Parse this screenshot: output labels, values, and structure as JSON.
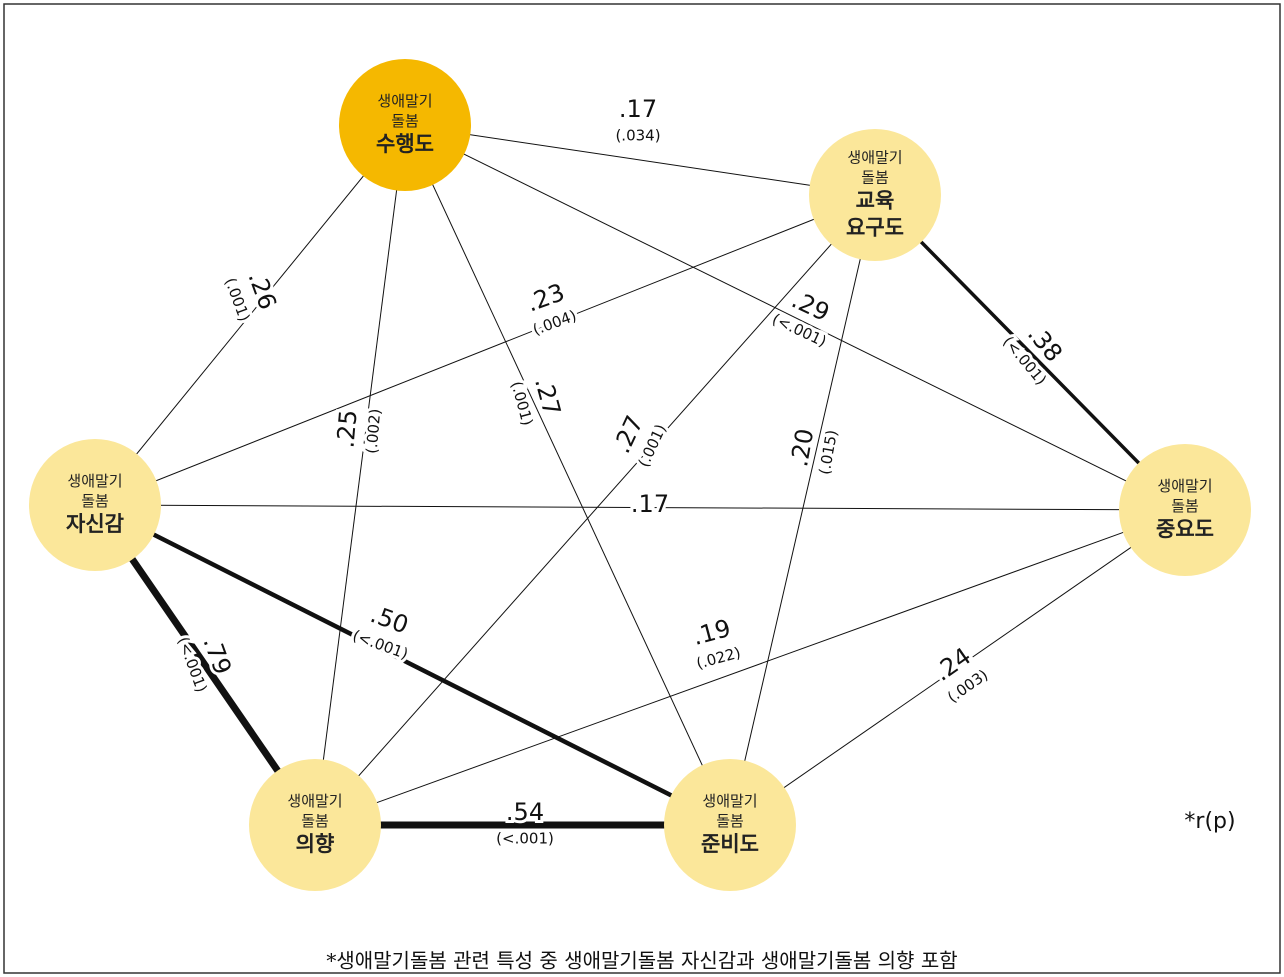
{
  "nodes": [
    {
      "small": [
        "생애말기",
        "돌봄"
      ],
      "name": [
        "수행도"
      ]
    },
    {
      "small": [
        "생애말기",
        "돌봄"
      ],
      "name": [
        "교육",
        "요구도"
      ]
    },
    {
      "small": [
        "생애말기",
        "돌봄"
      ],
      "name": [
        "자신감"
      ]
    },
    {
      "small": [
        "생애말기",
        "돌봄"
      ],
      "name": [
        "중요도"
      ]
    },
    {
      "small": [
        "생애말기",
        "돌봄"
      ],
      "name": [
        "의향"
      ]
    },
    {
      "small": [
        "생애말기",
        "돌봄"
      ],
      "name": [
        "준비도"
      ]
    }
  ],
  "edges": [
    {
      "r": ".17",
      "p": "(.034)"
    },
    {
      "r": ".26",
      "p": "(.001)"
    },
    {
      "r": ".23",
      "p": "(.004)"
    },
    {
      "r": ".25",
      "p": "(.002)"
    },
    {
      "r": ".27",
      "p": "(.001)"
    },
    {
      "r": ".29",
      "p": "(<.001)"
    },
    {
      "r": ".38",
      "p": "(<.001)"
    },
    {
      "r": ".27",
      "p": "(.001)"
    },
    {
      "r": ".20",
      "p": "(.015)"
    },
    {
      "r": ".17"
    },
    {
      "r": ".79",
      "p": "(<.001)"
    },
    {
      "r": ".50",
      "p": "(<.001)"
    },
    {
      "r": ".19",
      "p": "(.022)"
    },
    {
      "r": ".24",
      "p": "(.003)"
    },
    {
      "r": ".54",
      "p": "(<.001)"
    }
  ],
  "legend": "*r(p)",
  "footnote": "*생애말기돌봄 관련 특성 중 생애말기돌봄 자신감과 생애말기돌봄 의향 포함"
}
